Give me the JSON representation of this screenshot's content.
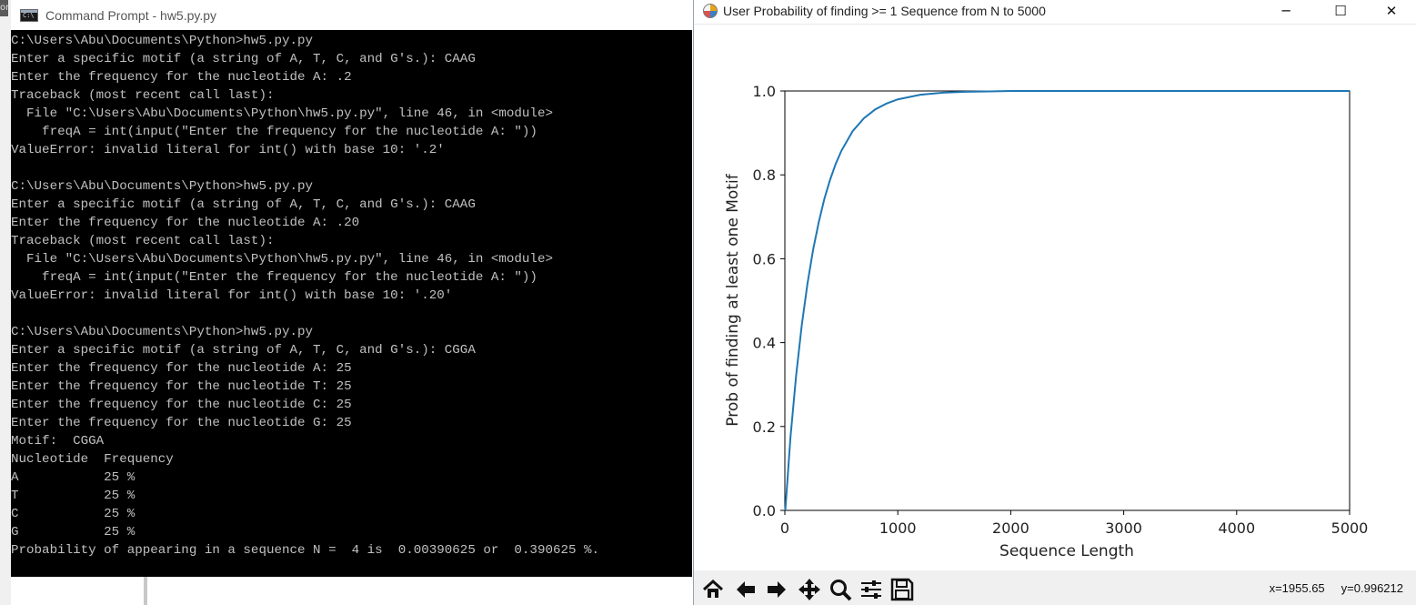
{
  "cmd_window": {
    "edge_label": "or",
    "title": "Command Prompt - hw5.py.py",
    "console_lines": [
      "C:\\Users\\Abu\\Documents\\Python>hw5.py.py",
      "Enter a specific motif (a string of A, T, C, and G's.): CAAG",
      "Enter the frequency for the nucleotide A: .2",
      "Traceback (most recent call last):",
      "  File \"C:\\Users\\Abu\\Documents\\Python\\hw5.py.py\", line 46, in <module>",
      "    freqA = int(input(\"Enter the frequency for the nucleotide A: \"))",
      "ValueError: invalid literal for int() with base 10: '.2'",
      "",
      "C:\\Users\\Abu\\Documents\\Python>hw5.py.py",
      "Enter a specific motif (a string of A, T, C, and G's.): CAAG",
      "Enter the frequency for the nucleotide A: .20",
      "Traceback (most recent call last):",
      "  File \"C:\\Users\\Abu\\Documents\\Python\\hw5.py.py\", line 46, in <module>",
      "    freqA = int(input(\"Enter the frequency for the nucleotide A: \"))",
      "ValueError: invalid literal for int() with base 10: '.20'",
      "",
      "C:\\Users\\Abu\\Documents\\Python>hw5.py.py",
      "Enter a specific motif (a string of A, T, C, and G's.): CGGA",
      "Enter the frequency for the nucleotide A: 25",
      "Enter the frequency for the nucleotide T: 25",
      "Enter the frequency for the nucleotide C: 25",
      "Enter the frequency for the nucleotide G: 25",
      "Motif:  CGGA",
      "Nucleotide  Frequency",
      "A           25 %",
      "T           25 %",
      "C           25 %",
      "G           25 %",
      "Probability of appearing in a sequence N =  4 is  0.00390625 or  0.390625 %."
    ]
  },
  "figure_window": {
    "title": "User Probability of finding >= 1 Sequence from N to 5000",
    "buttons": {
      "minimize": "─",
      "maximize": "☐",
      "close": "✕"
    },
    "toolbar": [
      {
        "name": "home-icon",
        "glyph": "home"
      },
      {
        "name": "back-icon",
        "glyph": "back"
      },
      {
        "name": "forward-icon",
        "glyph": "forward"
      },
      {
        "name": "pan-icon",
        "glyph": "pan"
      },
      {
        "name": "zoom-icon",
        "glyph": "zoom"
      },
      {
        "name": "configure-subplots-icon",
        "glyph": "sliders"
      },
      {
        "name": "save-icon",
        "glyph": "save"
      }
    ],
    "coords": {
      "x": "x=1955.65",
      "y": "y=0.996212"
    }
  },
  "chart_data": {
    "type": "line",
    "title": "",
    "xlabel": "Sequence Length",
    "ylabel": "Prob of finding at least one Motif",
    "xlim": [
      0,
      5000
    ],
    "ylim": [
      0,
      1.0
    ],
    "x_ticks": [
      0,
      1000,
      2000,
      3000,
      4000,
      5000
    ],
    "y_ticks": [
      0.0,
      0.2,
      0.4,
      0.6,
      0.8,
      1.0
    ],
    "x_tick_labels": [
      "0",
      "1000",
      "2000",
      "3000",
      "4000",
      "5000"
    ],
    "y_tick_labels": [
      "0.0",
      "0.2",
      "0.4",
      "0.6",
      "0.8",
      "1.0"
    ],
    "grid": false,
    "series": [
      {
        "color": "#1f77b4",
        "x": [
          4,
          50,
          100,
          150,
          200,
          250,
          300,
          350,
          400,
          450,
          500,
          600,
          700,
          800,
          900,
          1000,
          1200,
          1400,
          1600,
          1800,
          2000,
          2500,
          3000,
          3500,
          4000,
          4500,
          5000
        ],
        "y": [
          0.0,
          0.175,
          0.322,
          0.442,
          0.54,
          0.621,
          0.687,
          0.743,
          0.788,
          0.826,
          0.857,
          0.904,
          0.935,
          0.956,
          0.97,
          0.98,
          0.991,
          0.996,
          0.998,
          0.999,
          1.0,
          1.0,
          1.0,
          1.0,
          1.0,
          1.0,
          1.0
        ]
      }
    ]
  }
}
